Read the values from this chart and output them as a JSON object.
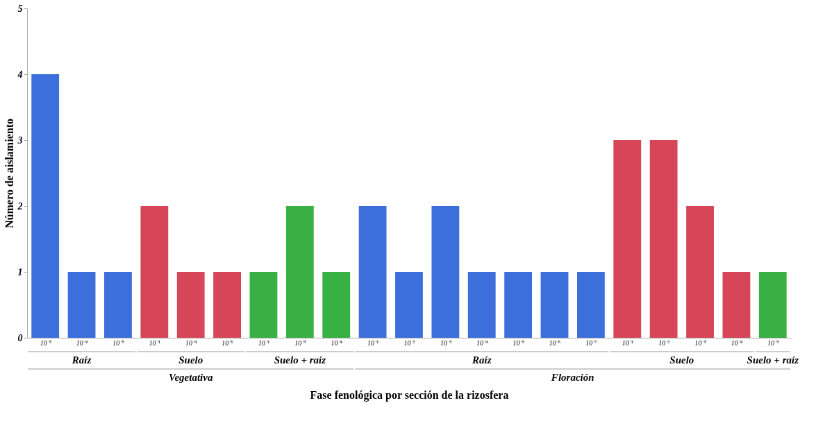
{
  "chart_data": {
    "type": "bar",
    "xlabel": "Fase fenológica por sección de la rizosfera",
    "ylabel": "Número de aislamiento",
    "categories": [
      "10⁻³",
      "10⁻⁴",
      "10⁻⁵",
      "10⁻¹",
      "10⁻⁴",
      "10⁻⁶",
      "10⁻¹",
      "10⁻³",
      "10⁻⁴",
      "10⁻¹",
      "10⁻²",
      "10⁻³",
      "10⁻⁴",
      "10⁻⁵",
      "10⁻⁶",
      "10⁻⁷",
      "10⁻¹",
      "10⁻²",
      "10⁻³",
      "10⁻⁴",
      "10⁻³"
    ],
    "series": [
      {
        "name": "Raíz",
        "color": "#3d6fdc",
        "values": [
          4,
          1,
          1,
          null,
          null,
          null,
          null,
          null,
          null,
          2,
          1,
          2,
          1,
          1,
          1,
          1,
          null,
          null,
          null,
          null,
          null
        ]
      },
      {
        "name": "Suelo",
        "color": "#d64658",
        "values": [
          null,
          null,
          null,
          2,
          1,
          1,
          null,
          null,
          null,
          null,
          null,
          null,
          null,
          null,
          null,
          null,
          3,
          3,
          2,
          1,
          null
        ]
      },
      {
        "name": "Suelo + raíz",
        "color": "#38b044",
        "values": [
          null,
          null,
          null,
          null,
          null,
          null,
          1,
          2,
          1,
          null,
          null,
          null,
          null,
          null,
          null,
          null,
          null,
          null,
          null,
          null,
          1
        ]
      }
    ],
    "annotations": [
      "Vegetativa",
      "Floración"
    ],
    "ylim": [
      0,
      5
    ],
    "yticks": [
      0,
      1,
      2,
      3,
      4,
      5
    ],
    "grid": false
  }
}
